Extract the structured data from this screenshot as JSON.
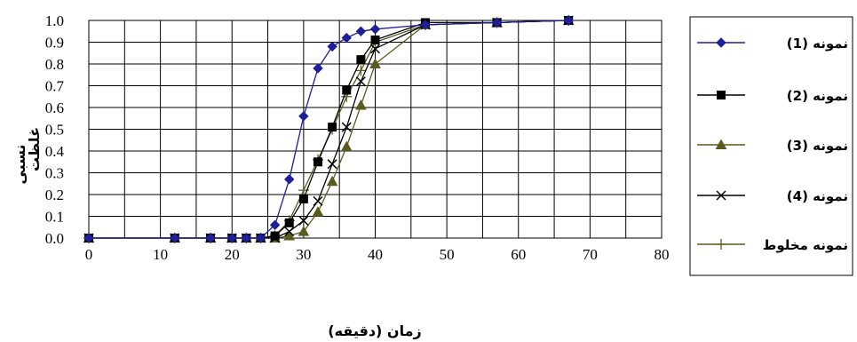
{
  "chart_data": {
    "type": "line",
    "xlabel": "زمان (دقیقه)",
    "ylabel_lines": [
      "غلظت",
      "نسبی"
    ],
    "xlim": [
      0,
      80
    ],
    "ylim": [
      0,
      1
    ],
    "x_ticks": [
      "0",
      "10",
      "20",
      "30",
      "40",
      "50",
      "60",
      "70",
      "80"
    ],
    "y_ticks": [
      "0.0",
      "0.1",
      "0.2",
      "0.3",
      "0.4",
      "0.5",
      "0.6",
      "0.7",
      "0.8",
      "0.9",
      "1.0"
    ],
    "grid": true,
    "legend_position": "right",
    "series": [
      {
        "name": "نمونه (1)",
        "marker": "diamond",
        "color": "#1f1f9a",
        "points": [
          [
            0,
            0
          ],
          [
            12,
            0
          ],
          [
            17,
            0
          ],
          [
            20,
            0
          ],
          [
            22,
            0
          ],
          [
            24,
            0
          ],
          [
            26,
            0.06
          ],
          [
            28,
            0.27
          ],
          [
            30,
            0.56
          ],
          [
            32,
            0.78
          ],
          [
            34,
            0.88
          ],
          [
            36,
            0.92
          ],
          [
            38,
            0.95
          ],
          [
            40,
            0.96
          ],
          [
            47,
            0.98
          ],
          [
            57,
            0.99
          ],
          [
            67,
            1.0
          ]
        ]
      },
      {
        "name": "نمونه (2)",
        "marker": "square",
        "color": "#000000",
        "points": [
          [
            0,
            0
          ],
          [
            12,
            0
          ],
          [
            17,
            0
          ],
          [
            20,
            0
          ],
          [
            22,
            0
          ],
          [
            24,
            0
          ],
          [
            26,
            0.01
          ],
          [
            28,
            0.07
          ],
          [
            30,
            0.18
          ],
          [
            32,
            0.35
          ],
          [
            34,
            0.51
          ],
          [
            36,
            0.68
          ],
          [
            38,
            0.82
          ],
          [
            40,
            0.91
          ],
          [
            47,
            0.99
          ],
          [
            57,
            0.99
          ],
          [
            67,
            1.0
          ]
        ]
      },
      {
        "name": "نمونه (3)",
        "marker": "triangle",
        "color": "#5a5a1e",
        "points": [
          [
            0,
            0
          ],
          [
            12,
            0
          ],
          [
            17,
            0
          ],
          [
            20,
            0
          ],
          [
            22,
            0
          ],
          [
            24,
            0
          ],
          [
            26,
            0
          ],
          [
            28,
            0.01
          ],
          [
            30,
            0.03
          ],
          [
            32,
            0.12
          ],
          [
            34,
            0.26
          ],
          [
            36,
            0.42
          ],
          [
            38,
            0.61
          ],
          [
            40,
            0.8
          ],
          [
            47,
            0.98
          ],
          [
            57,
            0.99
          ],
          [
            67,
            1.0
          ]
        ]
      },
      {
        "name": "نمونه (4)",
        "marker": "x",
        "color": "#000000",
        "points": [
          [
            0,
            0
          ],
          [
            12,
            0
          ],
          [
            17,
            0
          ],
          [
            20,
            0
          ],
          [
            22,
            0
          ],
          [
            24,
            0
          ],
          [
            26,
            0
          ],
          [
            28,
            0.03
          ],
          [
            30,
            0.08
          ],
          [
            32,
            0.17
          ],
          [
            34,
            0.34
          ],
          [
            36,
            0.51
          ],
          [
            38,
            0.72
          ],
          [
            40,
            0.87
          ],
          [
            47,
            0.98
          ],
          [
            57,
            0.99
          ],
          [
            67,
            1.0
          ]
        ]
      },
      {
        "name": "نمونه مخلوط",
        "marker": "plus",
        "color": "#5a5a1e",
        "points": [
          [
            0,
            0
          ],
          [
            12,
            0
          ],
          [
            17,
            0
          ],
          [
            20,
            0
          ],
          [
            22,
            0
          ],
          [
            24,
            0
          ],
          [
            26,
            0.01
          ],
          [
            28,
            0.08
          ],
          [
            30,
            0.22
          ],
          [
            32,
            0.36
          ],
          [
            34,
            0.5
          ],
          [
            36,
            0.65
          ],
          [
            38,
            0.77
          ],
          [
            40,
            0.9
          ],
          [
            47,
            0.98
          ],
          [
            57,
            0.99
          ],
          [
            67,
            1.0
          ]
        ]
      }
    ]
  }
}
